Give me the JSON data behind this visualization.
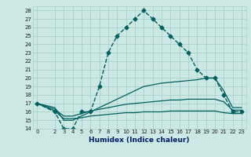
{
  "xlabel": "Humidex (Indice chaleur)",
  "bg_color": "#cce8e4",
  "grid_color": "#aacfca",
  "line_color": "#006060",
  "xlim": [
    -0.5,
    23.5
  ],
  "ylim": [
    14,
    28.5
  ],
  "xticks": [
    0,
    2,
    3,
    4,
    5,
    6,
    7,
    8,
    9,
    10,
    11,
    12,
    13,
    14,
    15,
    16,
    17,
    18,
    19,
    20,
    21,
    22,
    23
  ],
  "yticks": [
    14,
    15,
    16,
    17,
    18,
    19,
    20,
    21,
    22,
    23,
    24,
    25,
    26,
    27,
    28
  ],
  "series": [
    {
      "x": [
        0,
        2,
        3,
        4,
        5,
        6,
        7,
        8,
        9,
        10,
        11,
        12,
        13,
        14,
        15,
        16,
        17,
        18,
        19,
        20,
        21,
        22,
        23
      ],
      "y": [
        17,
        16,
        14,
        14,
        16,
        16,
        19,
        23,
        25,
        26,
        27,
        28,
        27,
        26,
        25,
        24,
        23,
        21,
        20,
        20,
        18,
        16,
        16
      ],
      "style": "--",
      "marker": "D",
      "markersize": 2.5,
      "linewidth": 1.0
    },
    {
      "x": [
        0,
        2,
        3,
        4,
        5,
        6,
        7,
        8,
        9,
        10,
        11,
        12,
        13,
        14,
        15,
        16,
        17,
        18,
        19,
        20,
        21,
        22,
        23
      ],
      "y": [
        17,
        16.5,
        15,
        15,
        15.5,
        16,
        16.5,
        17,
        17.5,
        18,
        18.5,
        19,
        19.2,
        19.4,
        19.5,
        19.6,
        19.7,
        19.8,
        20,
        20,
        18.5,
        16.5,
        16.5
      ],
      "style": "-",
      "marker": null,
      "markersize": 0,
      "linewidth": 0.9
    },
    {
      "x": [
        0,
        2,
        3,
        4,
        5,
        6,
        7,
        8,
        9,
        10,
        11,
        12,
        13,
        14,
        15,
        16,
        17,
        18,
        19,
        20,
        21,
        22,
        23
      ],
      "y": [
        17,
        16.3,
        15.5,
        15.5,
        15.8,
        16.1,
        16.3,
        16.5,
        16.7,
        16.9,
        17.0,
        17.1,
        17.2,
        17.3,
        17.4,
        17.4,
        17.5,
        17.5,
        17.5,
        17.5,
        17.2,
        16.2,
        16.2
      ],
      "style": "-",
      "marker": null,
      "markersize": 0,
      "linewidth": 0.9
    },
    {
      "x": [
        0,
        2,
        3,
        4,
        5,
        6,
        7,
        8,
        9,
        10,
        11,
        12,
        13,
        14,
        15,
        16,
        17,
        18,
        19,
        20,
        21,
        22,
        23
      ],
      "y": [
        17,
        16.1,
        15.2,
        15.2,
        15.3,
        15.5,
        15.6,
        15.7,
        15.8,
        15.9,
        15.9,
        16.0,
        16.0,
        16.0,
        16.1,
        16.1,
        16.1,
        16.1,
        16.1,
        16.1,
        15.9,
        15.8,
        15.8
      ],
      "style": "-",
      "marker": null,
      "markersize": 0,
      "linewidth": 0.9
    }
  ]
}
